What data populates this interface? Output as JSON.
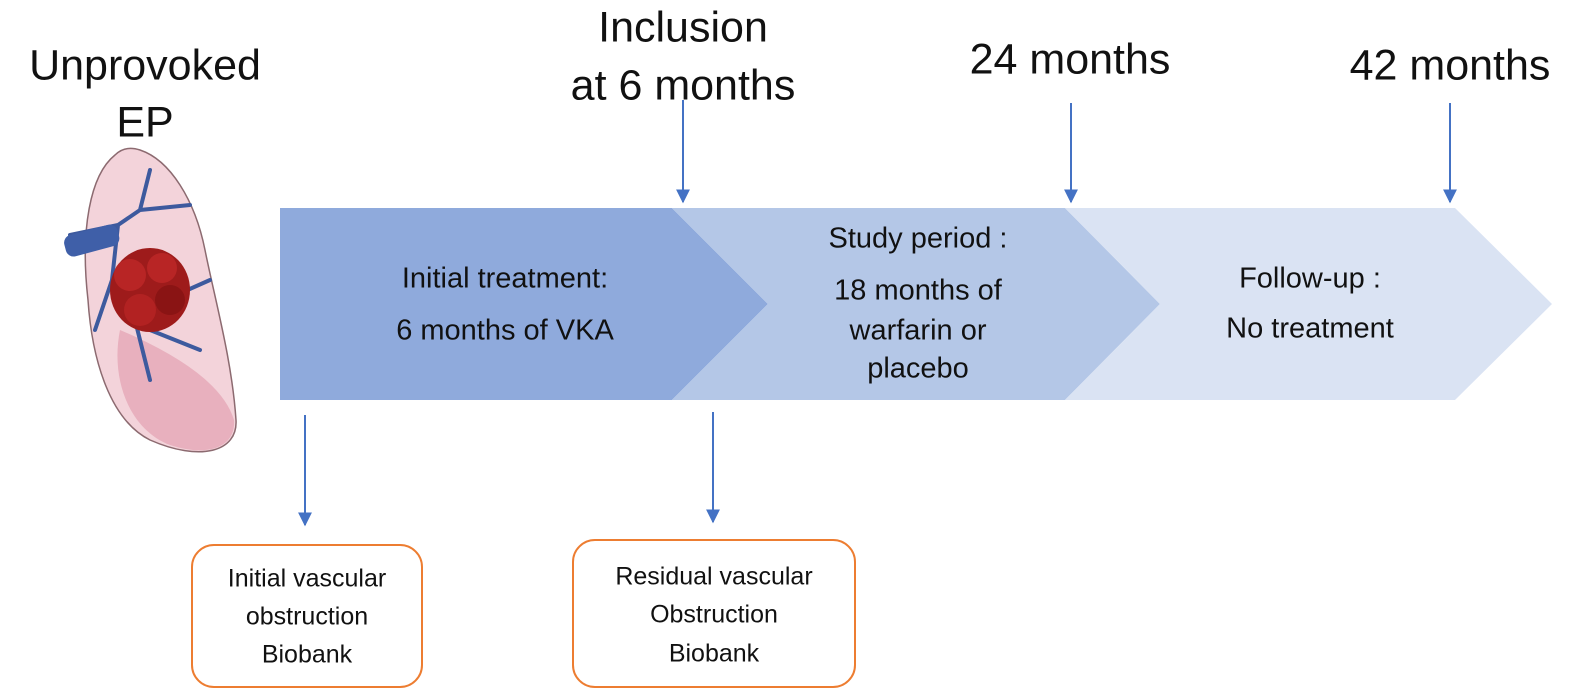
{
  "start_label": [
    "Unprovoked",
    "EP"
  ],
  "milestones": [
    {
      "lines": [
        "Inclusion",
        "at 6 months"
      ]
    },
    {
      "lines": [
        "24 months"
      ]
    },
    {
      "lines": [
        "42 months"
      ]
    }
  ],
  "phases": [
    {
      "lines": [
        "Initial treatment:",
        "6 months of VKA"
      ]
    },
    {
      "lines": [
        "Study period :",
        "18 months of",
        "warfarin or",
        "placebo"
      ]
    },
    {
      "lines": [
        "Follow-up :",
        "No treatment"
      ]
    }
  ],
  "boxes": [
    {
      "lines": [
        "Initial vascular",
        "obstruction",
        "Biobank"
      ]
    },
    {
      "lines": [
        "Residual vascular",
        "Obstruction",
        "Biobank"
      ]
    }
  ]
}
